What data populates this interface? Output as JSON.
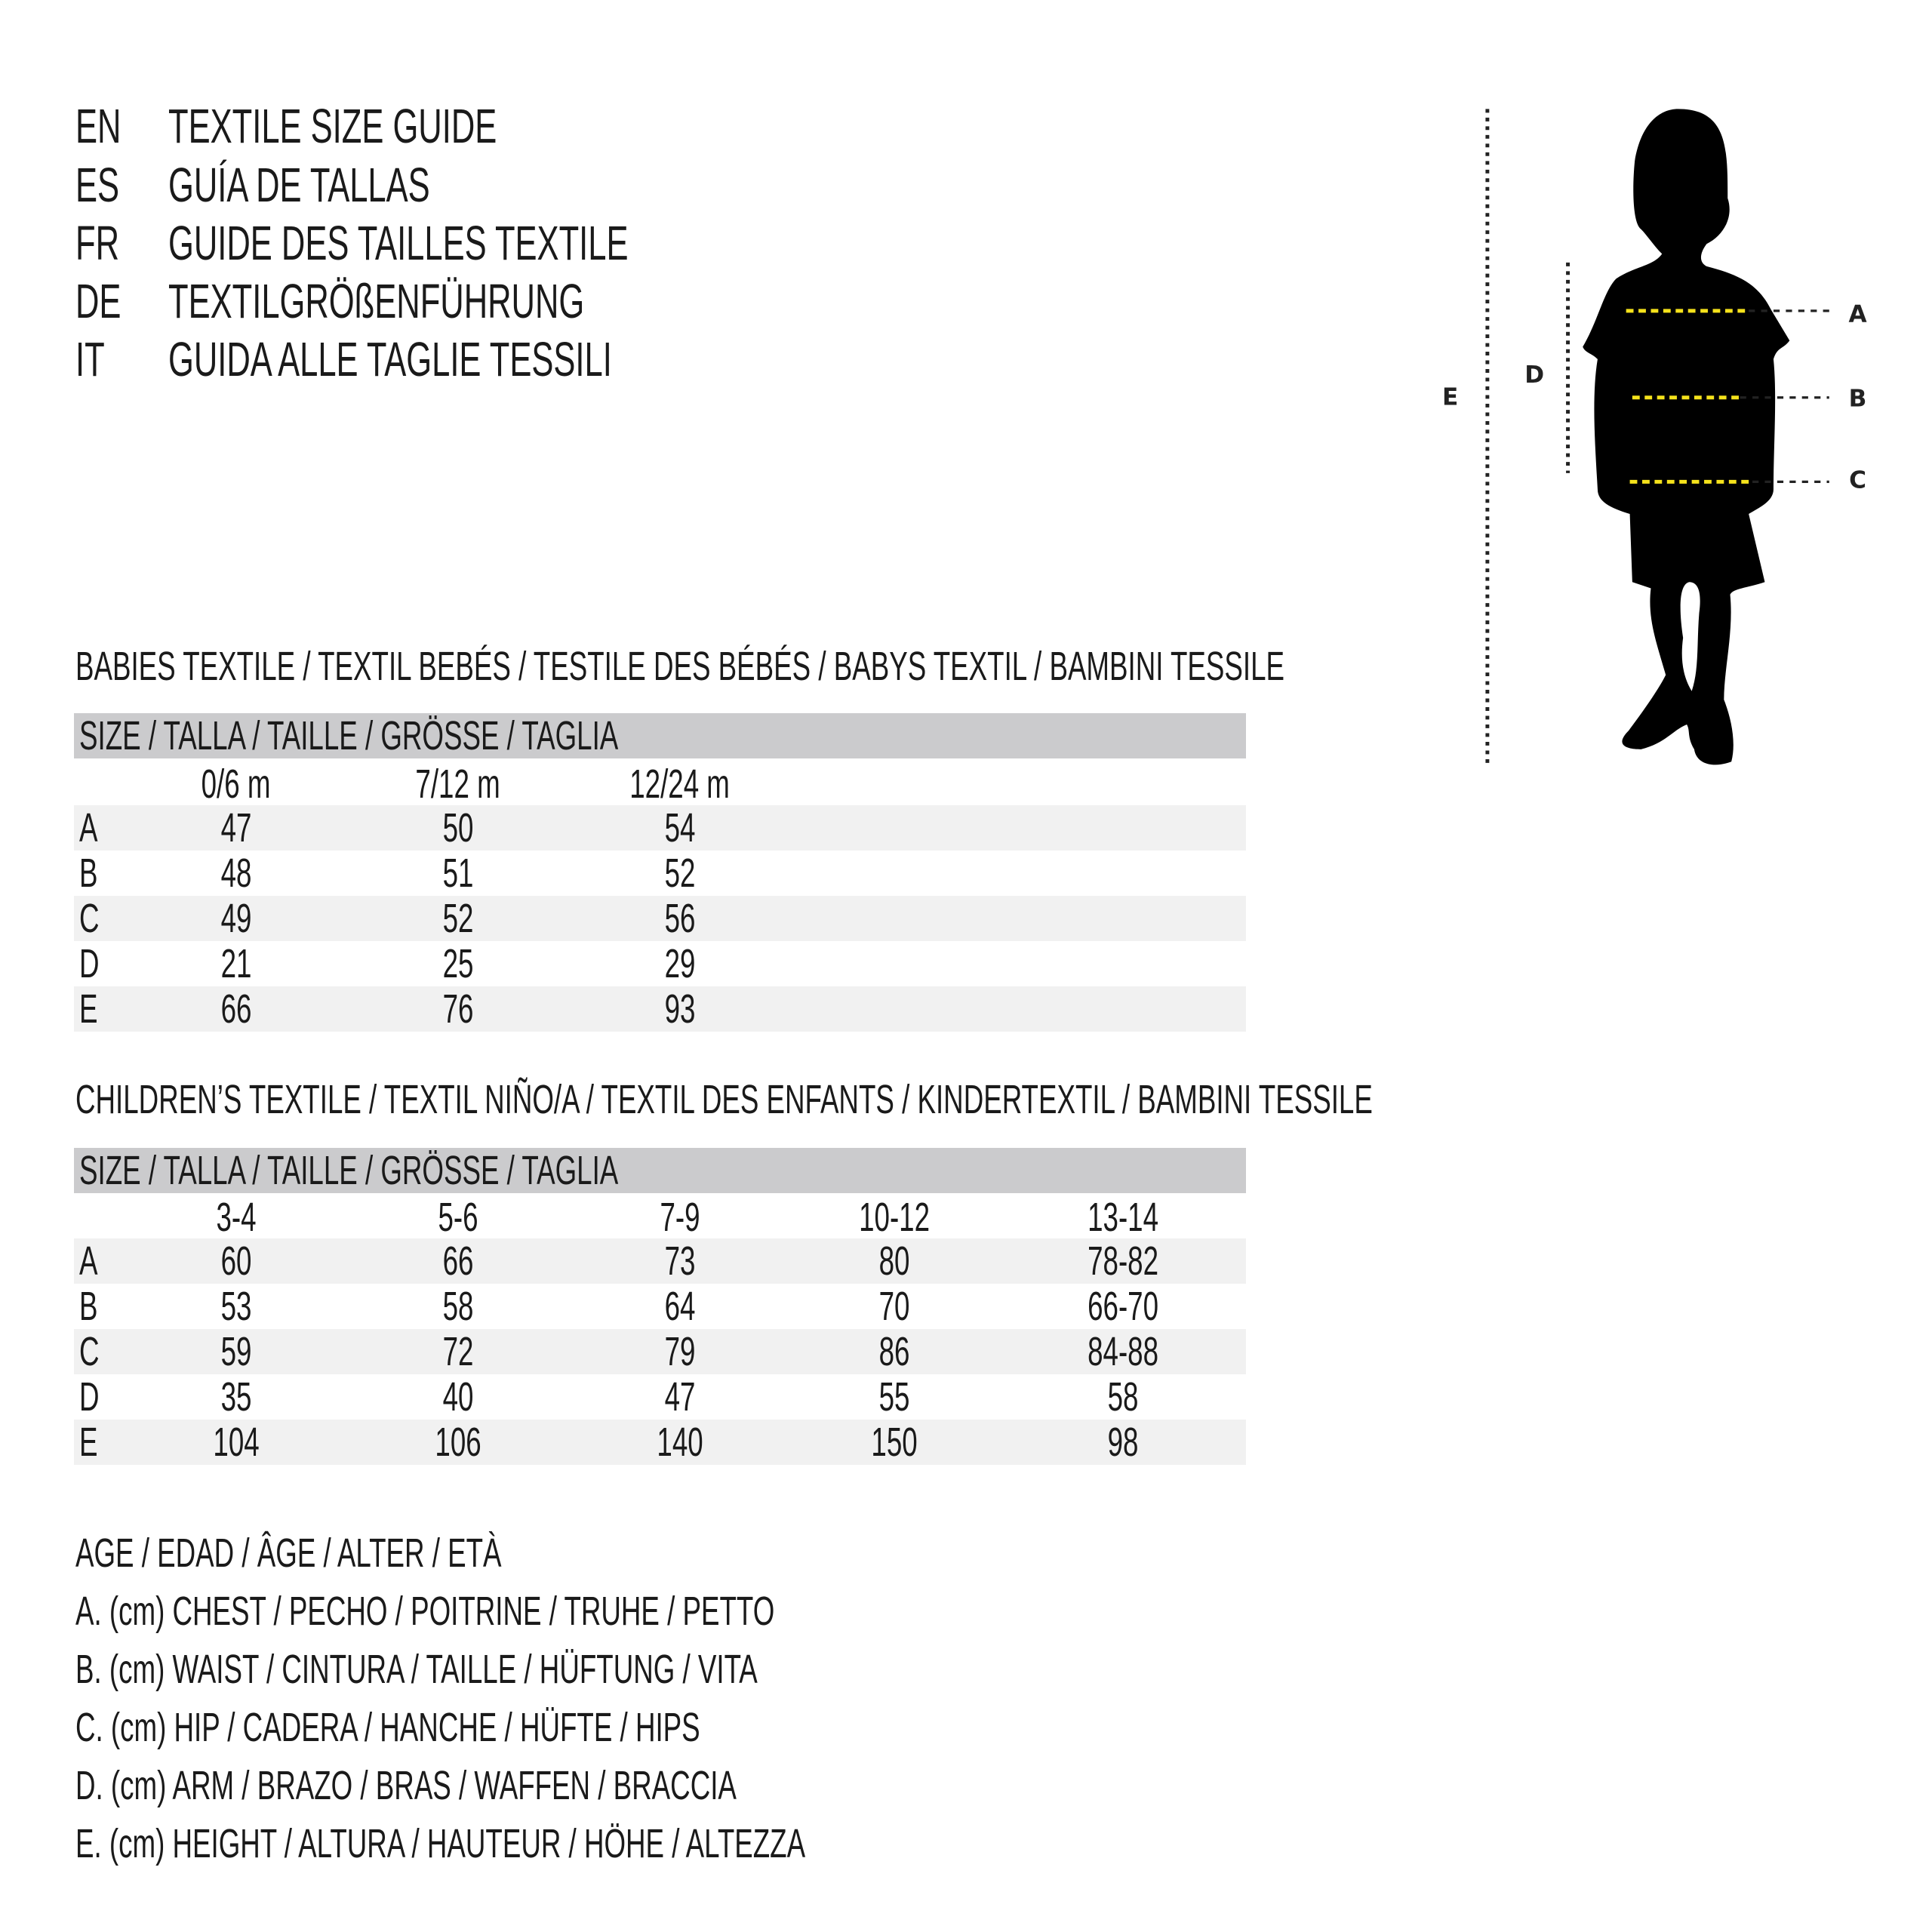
{
  "title_lines": [
    {
      "code": "EN",
      "text": "TEXTILE SIZE GUIDE"
    },
    {
      "code": "ES",
      "text": "GUÍA DE TALLAS"
    },
    {
      "code": "FR",
      "text": "GUIDE DES TAILLES TEXTILE"
    },
    {
      "code": "DE",
      "text": "TEXTILGRÖßENFÜHRUNG"
    },
    {
      "code": "IT",
      "text": "GUIDA ALLE TAGLIE TESSILI"
    }
  ],
  "babies": {
    "heading": "BABIES TEXTILE / TEXTIL BEBÉS / TESTILE DES BÉBÉS / BABYS TEXTIL / BAMBINI TESSILE",
    "size_label": "SIZE / TALLA / TAILLE / GRÖSSE / TAGLIA",
    "columns": [
      "0/6 m",
      "7/12 m",
      "12/24 m"
    ],
    "rows": [
      {
        "label": "A",
        "values": [
          "47",
          "50",
          "54"
        ]
      },
      {
        "label": "B",
        "values": [
          "48",
          "51",
          "52"
        ]
      },
      {
        "label": "C",
        "values": [
          "49",
          "52",
          "56"
        ]
      },
      {
        "label": "D",
        "values": [
          "21",
          "25",
          "29"
        ]
      },
      {
        "label": "E",
        "values": [
          "66",
          "76",
          "93"
        ]
      }
    ]
  },
  "children": {
    "heading": "CHILDREN’S TEXTILE / TEXTIL NIÑO/A / TEXTIL DES ENFANTS / KINDERTEXTIL / BAMBINI TESSILE",
    "size_label": "SIZE / TALLA / TAILLE / GRÖSSE / TAGLIA",
    "columns": [
      "3-4",
      "5-6",
      "7-9",
      "10-12",
      "13-14"
    ],
    "rows": [
      {
        "label": "A",
        "values": [
          "60",
          "66",
          "73",
          "80",
          "78-82"
        ]
      },
      {
        "label": "B",
        "values": [
          "53",
          "58",
          "64",
          "70",
          "66-70"
        ]
      },
      {
        "label": "C",
        "values": [
          "59",
          "72",
          "79",
          "86",
          "84-88"
        ]
      },
      {
        "label": "D",
        "values": [
          "35",
          "40",
          "47",
          "55",
          "58"
        ]
      },
      {
        "label": "E",
        "values": [
          "104",
          "106",
          "140",
          "150",
          "98"
        ]
      }
    ]
  },
  "legend": [
    "AGE / EDAD / ÂGE / ALTER / ETÀ",
    "A. (cm) CHEST / PECHO / POITRINE / TRUHE / PETTO",
    "B. (cm) WAIST / CINTURA / TAILLE / HÜFTUNG / VITA",
    "C. (cm) HIP / CADERA / HANCHE / HÜFTE / HIPS",
    "D. (cm) ARM / BRAZO / BRAS / WAFFEN / BRACCIA",
    "E. (cm) HEIGHT / ALTURA / HAUTEUR / HÖHE / ALTEZZA"
  ],
  "figure": {
    "labels": {
      "A": "A",
      "B": "B",
      "C": "C",
      "D": "D",
      "E": "E"
    },
    "icon": "child-silhouette-icon",
    "colors": {
      "silhouette": "#000000",
      "measure_line": "#f5e21b",
      "guide_line": "#222222",
      "header_bar": "#cbcbcd",
      "row_shade": "#f1f1f1"
    }
  }
}
